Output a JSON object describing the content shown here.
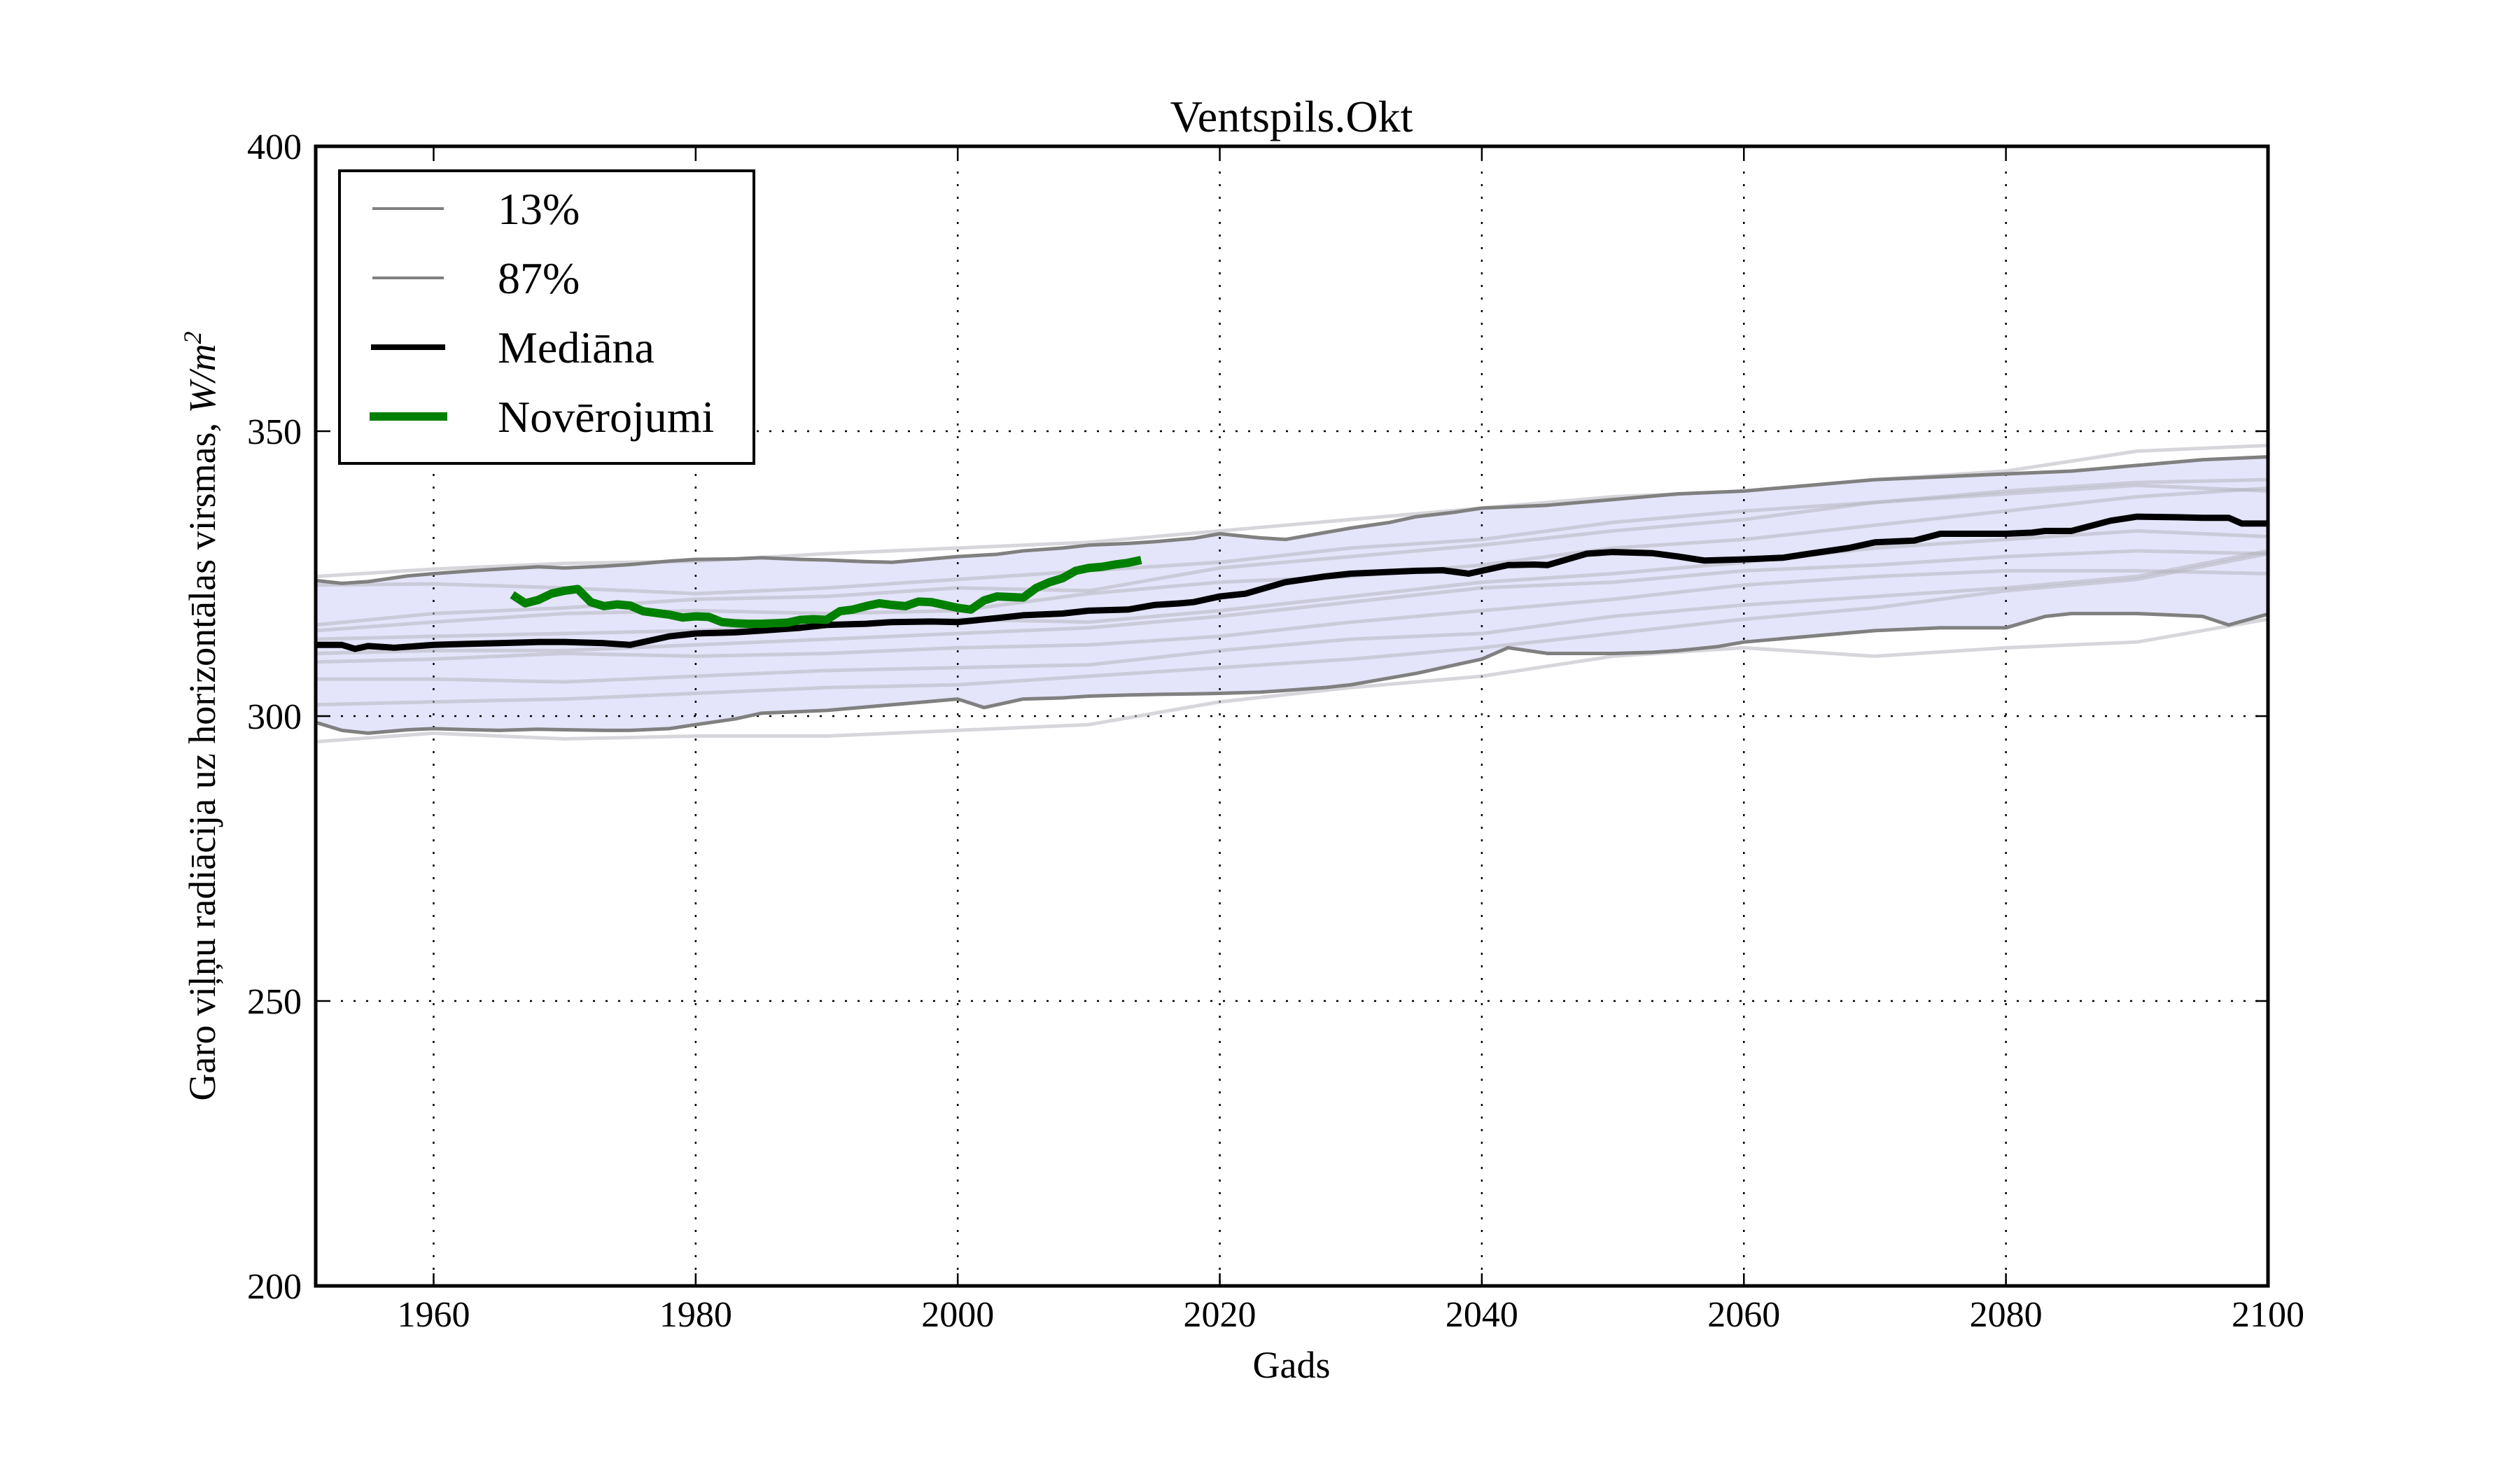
{
  "chart_data": {
    "type": "line",
    "title": "Ventspils.Okt",
    "xlabel": "Gads",
    "ylabel": "Garo viļņu radiācija uz horizontālas virsmas, W/m²",
    "ylabel_unit_base": "Garo viļņu radiācija uz horizontālas virsmas, ",
    "ylabel_unit": "W/m",
    "ylabel_unit_exp": "2",
    "xlim": [
      1951,
      2100
    ],
    "ylim": [
      200,
      400
    ],
    "xticks": [
      1960,
      1980,
      2000,
      2020,
      2040,
      2060,
      2080,
      2100
    ],
    "xtick_labels": [
      "1960",
      "1980",
      "2000",
      "2020",
      "2040",
      "2060",
      "2080",
      "2100"
    ],
    "yticks": [
      200,
      250,
      300,
      350,
      400
    ],
    "ytick_labels": [
      "200",
      "250",
      "300",
      "350",
      "400"
    ],
    "grid": true,
    "legend_position": "upper-left",
    "colors": {
      "band_fill": "#e4e4fa",
      "percentile": "#808080",
      "ensemble": "#b4b4be",
      "median": "#000000",
      "observations": "#008000"
    },
    "legend": [
      {
        "label": "13%",
        "style": "percentile"
      },
      {
        "label": "87%",
        "style": "percentile"
      },
      {
        "label": "Mediāna",
        "style": "median"
      },
      {
        "label": "Novērojumi",
        "style": "observations"
      }
    ],
    "series": [
      {
        "name": "87%",
        "role": "upper",
        "x": [
          1951,
          1953,
          1955,
          1958,
          1960,
          1963,
          1965,
          1968,
          1970,
          1973,
          1975,
          1978,
          1980,
          1983,
          1985,
          1988,
          1990,
          1993,
          1995,
          1998,
          2000,
          2003,
          2005,
          2008,
          2010,
          2013,
          2015,
          2018,
          2020,
          2023,
          2025,
          2028,
          2030,
          2033,
          2035,
          2038,
          2040,
          2043,
          2045,
          2048,
          2050,
          2053,
          2055,
          2058,
          2060,
          2063,
          2065,
          2068,
          2070,
          2073,
          2075,
          2078,
          2080,
          2083,
          2085,
          2088,
          2090,
          2093,
          2095,
          2098,
          2100
        ],
        "y": [
          323.8,
          323.3,
          323.6,
          324.6,
          325.0,
          325.5,
          325.8,
          326.2,
          326.0,
          326.3,
          326.6,
          327.2,
          327.5,
          327.6,
          327.8,
          327.5,
          327.4,
          327.1,
          327.0,
          327.6,
          328.0,
          328.4,
          329.0,
          329.5,
          330.0,
          330.3,
          330.6,
          331.2,
          332.0,
          331.3,
          331.0,
          332.2,
          333.0,
          334.0,
          335.0,
          335.8,
          336.5,
          336.8,
          337.0,
          337.6,
          338.0,
          338.6,
          339.0,
          339.3,
          339.5,
          340.1,
          340.5,
          341.1,
          341.5,
          341.8,
          342.0,
          342.3,
          342.5,
          342.8,
          343.0,
          343.6,
          344.0,
          344.6,
          345.0,
          345.3,
          345.5
        ]
      },
      {
        "name": "13%",
        "role": "lower",
        "x": [
          1951,
          1953,
          1955,
          1958,
          1960,
          1963,
          1965,
          1968,
          1970,
          1973,
          1975,
          1978,
          1980,
          1983,
          1985,
          1988,
          1990,
          1993,
          1995,
          1998,
          2000,
          2002,
          2005,
          2008,
          2010,
          2013,
          2015,
          2018,
          2020,
          2023,
          2025,
          2028,
          2030,
          2033,
          2035,
          2038,
          2040,
          2042,
          2045,
          2048,
          2050,
          2053,
          2055,
          2058,
          2060,
          2063,
          2065,
          2068,
          2070,
          2073,
          2075,
          2078,
          2080,
          2083,
          2085,
          2088,
          2090,
          2093,
          2095,
          2097,
          2100
        ],
        "y": [
          298.9,
          297.5,
          297.0,
          297.6,
          297.8,
          297.6,
          297.5,
          297.7,
          297.6,
          297.5,
          297.5,
          297.8,
          298.5,
          299.5,
          300.5,
          300.8,
          301.0,
          301.6,
          302.0,
          302.6,
          303.0,
          301.5,
          303.0,
          303.2,
          303.5,
          303.7,
          303.8,
          303.9,
          304.0,
          304.2,
          304.5,
          305.0,
          305.5,
          306.7,
          307.5,
          309.0,
          310.0,
          312.0,
          311.0,
          311.0,
          311.0,
          311.2,
          311.5,
          312.2,
          313.0,
          313.6,
          314.0,
          314.6,
          315.0,
          315.3,
          315.5,
          315.5,
          315.5,
          317.5,
          318.0,
          318.0,
          318.0,
          317.7,
          317.5,
          316.0,
          317.9
        ]
      },
      {
        "name": "Mediāna",
        "role": "median",
        "x": [
          1951,
          1953,
          1954,
          1955,
          1957,
          1960,
          1963,
          1965,
          1968,
          1970,
          1973,
          1975,
          1977,
          1978,
          1980,
          1983,
          1985,
          1988,
          1990,
          1993,
          1995,
          1998,
          2000,
          2003,
          2005,
          2008,
          2010,
          2013,
          2015,
          2017,
          2018,
          2020,
          2022,
          2025,
          2028,
          2030,
          2033,
          2035,
          2037,
          2039,
          2042,
          2044,
          2045,
          2048,
          2050,
          2053,
          2055,
          2057,
          2060,
          2063,
          2065,
          2068,
          2070,
          2073,
          2075,
          2078,
          2080,
          2082,
          2083,
          2085,
          2088,
          2090,
          2093,
          2095,
          2097,
          2098,
          2100
        ],
        "y": [
          312.5,
          312.5,
          311.8,
          312.3,
          312.0,
          312.5,
          312.7,
          312.8,
          313.0,
          313.0,
          312.8,
          312.5,
          313.5,
          314.0,
          314.5,
          314.7,
          315.0,
          315.5,
          316.0,
          316.2,
          316.5,
          316.6,
          316.5,
          317.2,
          317.7,
          318.0,
          318.5,
          318.7,
          319.5,
          319.8,
          320.0,
          321.0,
          321.5,
          323.5,
          324.5,
          325.0,
          325.3,
          325.5,
          325.6,
          325.0,
          326.5,
          326.6,
          326.5,
          328.5,
          328.8,
          328.6,
          328.0,
          327.3,
          327.5,
          327.8,
          328.5,
          329.5,
          330.5,
          330.8,
          332.0,
          332.0,
          332.0,
          332.2,
          332.5,
          332.5,
          334.3,
          335.0,
          334.9,
          334.8,
          334.8,
          333.8,
          333.8
        ]
      },
      {
        "name": "Novērojumi",
        "role": "observations",
        "x": [
          1966,
          1967,
          1968,
          1969,
          1970,
          1971,
          1972,
          1973,
          1974,
          1975,
          1976,
          1977,
          1978,
          1979,
          1980,
          1981,
          1982,
          1983,
          1984,
          1985,
          1986,
          1987,
          1988,
          1989,
          1990,
          1991,
          1992,
          1993,
          1994,
          1995,
          1996,
          1997,
          1998,
          1999,
          2000,
          2001,
          2002,
          2003,
          2004,
          2005,
          2006,
          2007,
          2008,
          2009,
          2010,
          2011,
          2012,
          2013,
          2014
        ],
        "y": [
          321.3,
          319.8,
          320.4,
          321.5,
          322.0,
          322.3,
          320.0,
          319.3,
          319.6,
          319.4,
          318.4,
          318.1,
          317.8,
          317.3,
          317.5,
          317.4,
          316.5,
          316.3,
          316.2,
          316.2,
          316.3,
          316.4,
          316.9,
          317.0,
          316.9,
          318.4,
          318.7,
          319.3,
          319.8,
          319.5,
          319.3,
          320.1,
          320.0,
          319.5,
          319.0,
          318.7,
          320.3,
          321.0,
          320.9,
          320.8,
          322.5,
          323.5,
          324.2,
          325.5,
          326.0,
          326.2,
          326.6,
          326.9,
          327.4
        ]
      }
    ],
    "ensemble": [
      {
        "x": [
          1951,
          1960,
          1970,
          1980,
          1990,
          2000,
          2010,
          2020,
          2030,
          2040,
          2050,
          2060,
          2070,
          2080,
          2090,
          2100
        ],
        "y": [
          324.5,
          325.8,
          326.8,
          327.2,
          328.5,
          329.5,
          330.5,
          332.5,
          334.5,
          336.5,
          338.5,
          339.5,
          341.5,
          343.0,
          346.5,
          347.5
        ]
      },
      {
        "x": [
          1951,
          1960,
          1970,
          1980,
          1990,
          2000,
          2010,
          2020,
          2030,
          2040,
          2050,
          2060,
          2070,
          2080,
          2090,
          2100
        ],
        "y": [
          323.0,
          323.2,
          322.5,
          321.5,
          322.5,
          324.0,
          325.5,
          327.0,
          329.5,
          331.0,
          334.0,
          336.0,
          337.5,
          339.0,
          340.5,
          339.5
        ]
      },
      {
        "x": [
          1951,
          1960,
          1970,
          1980,
          1990,
          2000,
          2010,
          2020,
          2030,
          2040,
          2050,
          2060,
          2070,
          2080,
          2090,
          2100
        ],
        "y": [
          316.0,
          318.0,
          319.0,
          320.5,
          321.0,
          322.5,
          322.0,
          326.0,
          328.0,
          330.0,
          332.5,
          334.5,
          337.5,
          339.5,
          341.0,
          341.5
        ]
      },
      {
        "x": [
          1951,
          1960,
          1970,
          1980,
          1990,
          2000,
          2010,
          2020,
          2030,
          2040,
          2050,
          2060,
          2070,
          2080,
          2090,
          2100
        ],
        "y": [
          315.0,
          316.5,
          318.0,
          318.5,
          318.0,
          318.5,
          321.5,
          323.5,
          324.5,
          326.5,
          329.5,
          331.0,
          333.5,
          336.0,
          338.5,
          340.0
        ]
      },
      {
        "x": [
          1951,
          1960,
          1970,
          1980,
          1990,
          2000,
          2010,
          2020,
          2030,
          2040,
          2050,
          2060,
          2070,
          2080,
          2090,
          2100
        ],
        "y": [
          313.5,
          314.0,
          314.5,
          315.0,
          316.0,
          317.0,
          316.5,
          318.5,
          321.0,
          323.5,
          325.0,
          327.0,
          329.5,
          331.0,
          332.5,
          331.5
        ]
      },
      {
        "x": [
          1951,
          1960,
          1970,
          1980,
          1990,
          2000,
          2010,
          2020,
          2030,
          2040,
          2050,
          2060,
          2070,
          2080,
          2090,
          2100
        ],
        "y": [
          311.0,
          311.5,
          311.5,
          312.5,
          313.5,
          314.5,
          315.5,
          317.5,
          320.0,
          322.5,
          323.5,
          325.5,
          326.5,
          328.0,
          329.0,
          328.5
        ]
      },
      {
        "x": [
          1951,
          1960,
          1970,
          1980,
          1990,
          2000,
          2010,
          2020,
          2030,
          2040,
          2050,
          2060,
          2070,
          2080,
          2090,
          2100
        ],
        "y": [
          309.5,
          310.0,
          311.0,
          310.5,
          311.0,
          312.0,
          312.5,
          314.0,
          316.5,
          318.5,
          320.5,
          323.0,
          324.5,
          325.5,
          325.5,
          325.0
        ]
      },
      {
        "x": [
          1951,
          1960,
          1970,
          1980,
          1990,
          2000,
          2010,
          2020,
          2030,
          2040,
          2050,
          2060,
          2070,
          2080,
          2090,
          2100
        ],
        "y": [
          306.5,
          306.5,
          306.0,
          307.0,
          308.0,
          308.5,
          309.0,
          311.5,
          313.5,
          314.5,
          317.5,
          319.5,
          321.0,
          322.5,
          324.5,
          329.0
        ]
      },
      {
        "x": [
          1951,
          1960,
          1970,
          1980,
          1990,
          2000,
          2010,
          2020,
          2030,
          2040,
          2050,
          2060,
          2070,
          2080,
          2090,
          2100
        ],
        "y": [
          302.0,
          302.5,
          303.0,
          304.0,
          305.0,
          305.5,
          307.0,
          308.5,
          310.0,
          312.0,
          314.5,
          317.0,
          319.0,
          322.0,
          324.0,
          328.5
        ]
      },
      {
        "x": [
          1951,
          1960,
          1970,
          1980,
          1990,
          2000,
          2010,
          2020,
          2030,
          2040,
          2050,
          2060,
          2070,
          2080,
          2090,
          2100
        ],
        "y": [
          295.5,
          297.0,
          296.0,
          296.5,
          296.5,
          297.5,
          298.5,
          302.5,
          305.0,
          307.0,
          310.5,
          312.0,
          310.5,
          312.0,
          313.0,
          317.0
        ]
      }
    ]
  }
}
